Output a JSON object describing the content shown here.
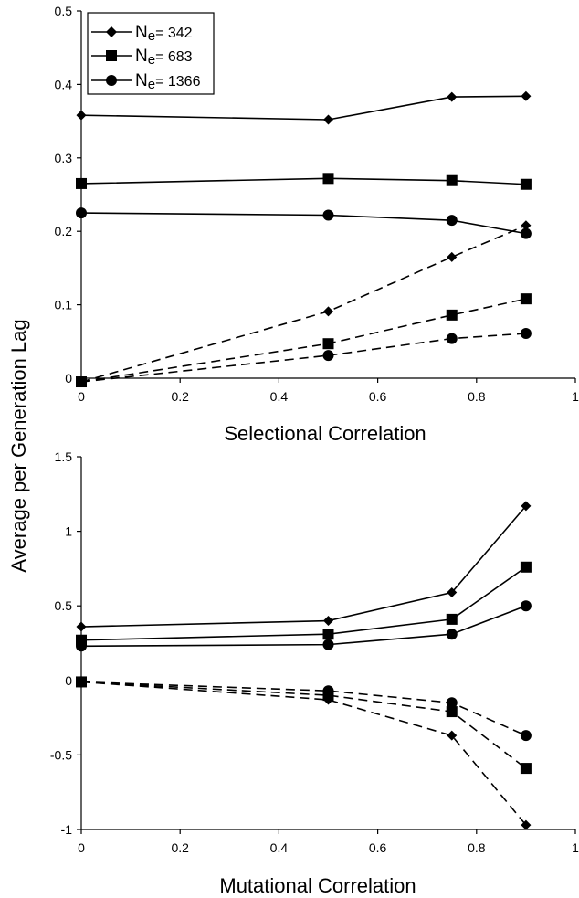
{
  "figure": {
    "shared_ylabel": "Average per Generation Lag"
  },
  "legend": {
    "entries": [
      {
        "marker": "diamond",
        "name": "N",
        "sub": "e",
        "value": "= 342"
      },
      {
        "marker": "square",
        "name": "N",
        "sub": "e",
        "value": "= 683"
      },
      {
        "marker": "circle",
        "name": "N",
        "sub": "e",
        "value": "= 1366"
      }
    ]
  },
  "chart_data": [
    {
      "type": "line",
      "title": "",
      "xlabel": "Selectional Correlation",
      "ylabel": "Average per Generation Lag",
      "xlim": [
        0,
        1
      ],
      "ylim": [
        0,
        0.5
      ],
      "x_ticks": [
        0,
        0.2,
        0.4,
        0.6,
        0.8,
        1
      ],
      "x_tick_labels": [
        "0",
        "0.2",
        "0.4",
        "0.6",
        "0.8",
        "1"
      ],
      "y_ticks": [
        0,
        0.1,
        0.2,
        0.3,
        0.4,
        0.5
      ],
      "y_tick_labels": [
        "0",
        "0.1",
        "0.2",
        "0.3",
        "0.4",
        "0.5"
      ],
      "grid": false,
      "legend_position": "top-left",
      "series": [
        {
          "marker": "diamond",
          "line": "solid",
          "x": [
            0,
            0.5,
            0.75,
            0.9
          ],
          "y": [
            0.358,
            0.352,
            0.383,
            0.384
          ]
        },
        {
          "marker": "square",
          "line": "solid",
          "x": [
            0,
            0.5,
            0.75,
            0.9
          ],
          "y": [
            0.265,
            0.272,
            0.269,
            0.264
          ]
        },
        {
          "marker": "circle",
          "line": "solid",
          "x": [
            0,
            0.5,
            0.75,
            0.9
          ],
          "y": [
            0.225,
            0.222,
            0.215,
            0.197
          ]
        },
        {
          "marker": "diamond",
          "line": "dashed",
          "x": [
            0,
            0.5,
            0.75,
            0.9
          ],
          "y": [
            -0.005,
            0.091,
            0.165,
            0.208
          ]
        },
        {
          "marker": "square",
          "line": "dashed",
          "x": [
            0,
            0.5,
            0.75,
            0.9
          ],
          "y": [
            -0.005,
            0.047,
            0.086,
            0.108
          ]
        },
        {
          "marker": "circle",
          "line": "dashed",
          "x": [
            0,
            0.5,
            0.75,
            0.9
          ],
          "y": [
            -0.005,
            0.031,
            0.054,
            0.061
          ]
        }
      ]
    },
    {
      "type": "line",
      "title": "",
      "xlabel": "Mutational Correlation",
      "ylabel": "Average per Generation Lag",
      "xlim": [
        0,
        1
      ],
      "ylim": [
        -1,
        1.5
      ],
      "x_ticks": [
        0,
        0.2,
        0.4,
        0.6,
        0.8,
        1
      ],
      "x_tick_labels": [
        "0",
        "0.2",
        "0.4",
        "0.6",
        "0.8",
        "1"
      ],
      "y_ticks": [
        -1,
        -0.5,
        0,
        0.5,
        1,
        1.5
      ],
      "y_tick_labels": [
        "-1",
        "-0.5",
        "0",
        "0.5",
        "1",
        "1.5"
      ],
      "grid": false,
      "series": [
        {
          "marker": "diamond",
          "line": "solid",
          "x": [
            0,
            0.5,
            0.75,
            0.9
          ],
          "y": [
            0.36,
            0.4,
            0.59,
            1.17
          ]
        },
        {
          "marker": "square",
          "line": "solid",
          "x": [
            0,
            0.5,
            0.75,
            0.9
          ],
          "y": [
            0.27,
            0.31,
            0.41,
            0.76
          ]
        },
        {
          "marker": "circle",
          "line": "solid",
          "x": [
            0,
            0.5,
            0.75,
            0.9
          ],
          "y": [
            0.23,
            0.24,
            0.31,
            0.5
          ]
        },
        {
          "marker": "diamond",
          "line": "dashed",
          "x": [
            0,
            0.5,
            0.75,
            0.9
          ],
          "y": [
            -0.01,
            -0.13,
            -0.37,
            -0.97
          ]
        },
        {
          "marker": "square",
          "line": "dashed",
          "x": [
            0,
            0.5,
            0.75,
            0.9
          ],
          "y": [
            -0.01,
            -0.1,
            -0.21,
            -0.59
          ]
        },
        {
          "marker": "circle",
          "line": "dashed",
          "x": [
            0,
            0.5,
            0.75,
            0.9
          ],
          "y": [
            -0.01,
            -0.07,
            -0.15,
            -0.37
          ]
        }
      ]
    }
  ]
}
